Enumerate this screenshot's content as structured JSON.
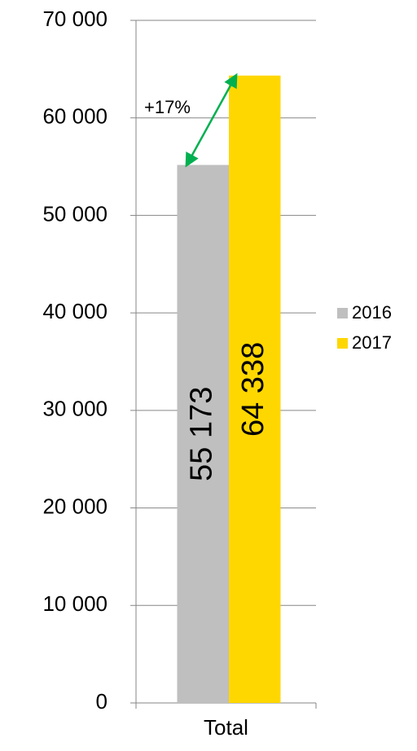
{
  "chart_data": {
    "type": "bar",
    "categories": [
      "Total"
    ],
    "series": [
      {
        "name": "2016",
        "color": "#bfbfbf",
        "values": [
          55173
        ],
        "value_labels": [
          "55 173"
        ]
      },
      {
        "name": "2017",
        "color": "#ffd700",
        "values": [
          64338
        ],
        "value_labels": [
          "64 338"
        ]
      }
    ],
    "ylim": [
      0,
      70000
    ],
    "yticks": [
      0,
      {
        "value": 10000,
        "label": "10 000"
      },
      {
        "value": 20000,
        "label": "20 000"
      },
      {
        "value": 30000,
        "label": "30 000"
      },
      {
        "value": 40000,
        "label": "40 000"
      },
      {
        "value": 50000,
        "label": "50 000"
      },
      {
        "value": 60000,
        "label": "60 000"
      },
      {
        "value": 70000,
        "label": "70 000"
      }
    ],
    "grid": true,
    "legend": "right",
    "annotations": [
      {
        "text": "+17%",
        "color": "#00b050"
      }
    ]
  }
}
